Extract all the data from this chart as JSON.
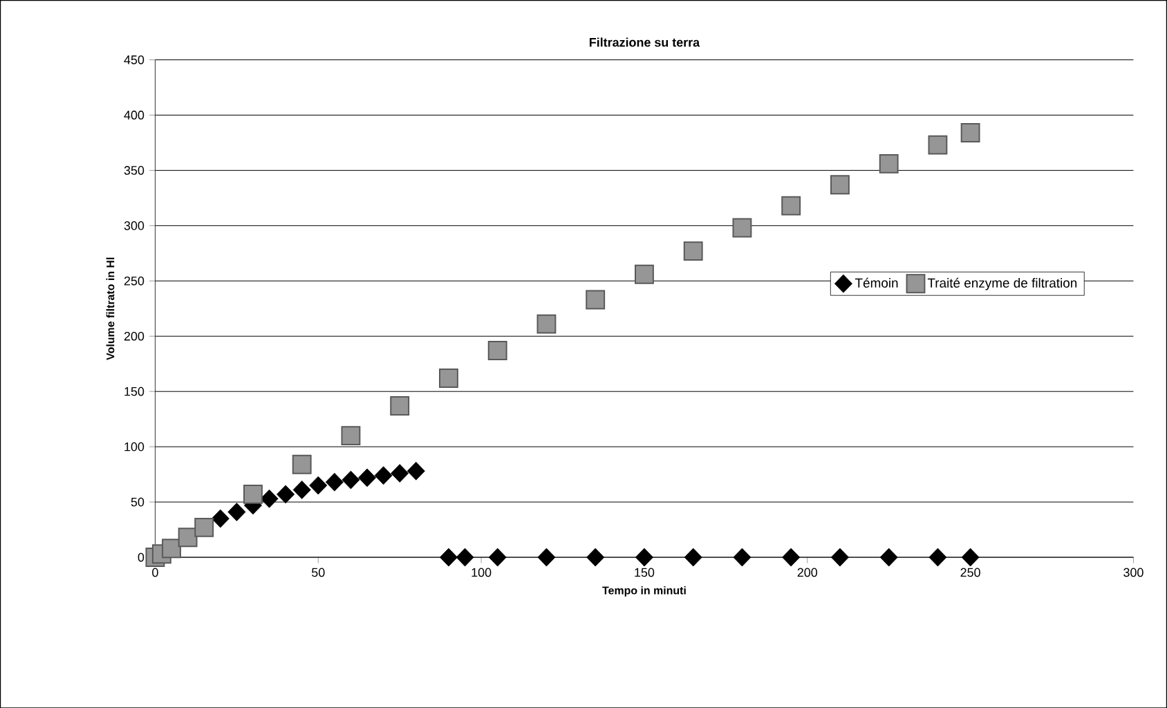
{
  "chart_data": {
    "type": "scatter",
    "title": "Filtrazione su terra",
    "xlabel": "Tempo in minuti",
    "ylabel": "Volume filtrato in Hl",
    "xlim": [
      0,
      300
    ],
    "xticks": [
      0,
      50,
      100,
      150,
      200,
      250,
      300
    ],
    "ylim": [
      0,
      450
    ],
    "yticks": [
      0,
      50,
      100,
      150,
      200,
      250,
      300,
      350,
      400,
      450
    ],
    "grid": "y",
    "legend": "right",
    "series": [
      {
        "name": "Témoin",
        "color": "#000000",
        "marker": "diamond",
        "x": [
          20,
          25,
          30,
          35,
          40,
          45,
          50,
          55,
          60,
          65,
          70,
          75,
          80,
          90,
          95,
          105,
          120,
          135,
          150,
          165,
          180,
          195,
          210,
          225,
          240,
          250
        ],
        "values": [
          35,
          41,
          47,
          53,
          57,
          61,
          65,
          68,
          70,
          72,
          74,
          76,
          78,
          0,
          0,
          0,
          0,
          0,
          0,
          0,
          0,
          0,
          0,
          0,
          0,
          0
        ]
      },
      {
        "name": "Traité enzyme de filtration",
        "color": "#969696",
        "marker": "square",
        "x": [
          0,
          2,
          5,
          10,
          15,
          30,
          45,
          60,
          75,
          90,
          105,
          120,
          135,
          150,
          165,
          180,
          195,
          210,
          225,
          240,
          250
        ],
        "values": [
          0,
          3,
          8,
          18,
          27,
          57,
          84,
          110,
          137,
          162,
          187,
          211,
          233,
          256,
          277,
          298,
          318,
          337,
          356,
          373,
          384
        ]
      }
    ]
  }
}
